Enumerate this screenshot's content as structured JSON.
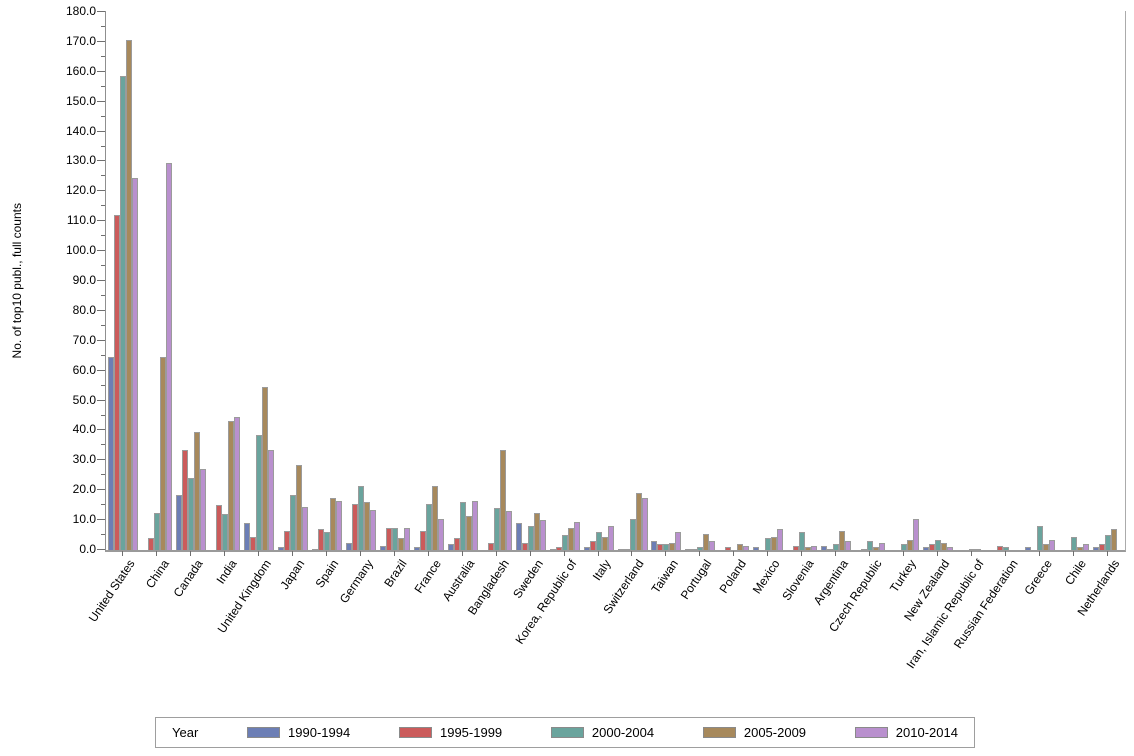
{
  "chart_data": {
    "type": "bar",
    "title": "",
    "xlabel": "",
    "ylabel": "No. of top10 publ., full counts",
    "ylim": [
      0,
      180
    ],
    "ytick_step": 10,
    "ytick_minor_step": 5,
    "ytick_labels": [
      "0.0",
      "10.0",
      "20.0",
      "30.0",
      "40.0",
      "50.0",
      "60.0",
      "70.0",
      "80.0",
      "90.0",
      "100.0",
      "110.0",
      "120.0",
      "130.0",
      "140.0",
      "150.0",
      "160.0",
      "170.0",
      "180.0"
    ],
    "grid": false,
    "legend": {
      "title": "Year",
      "position": "bottom"
    },
    "categories": [
      "United States",
      "China",
      "Canada",
      "India",
      "United Kingdom",
      "Japan",
      "Spain",
      "Germany",
      "Brazil",
      "France",
      "Australia",
      "Bangladesh",
      "Sweden",
      "Korea, Republic of",
      "Italy",
      "Switzerland",
      "Taiwan",
      "Portugal",
      "Poland",
      "Mexico",
      "Slovenia",
      "Argentina",
      "Czech Republic",
      "Turkey",
      "New Zealand",
      "Iran, Islamic Republic of",
      "Russian Federation",
      "Greece",
      "Chile",
      "Netherlands"
    ],
    "series": [
      {
        "name": "1990-1994",
        "color": "#6C7EB5",
        "values": [
          64.5,
          0,
          18.5,
          0,
          9,
          1,
          0.5,
          2.5,
          1.5,
          1,
          2,
          0,
          9,
          0.5,
          1,
          0.5,
          3,
          0.5,
          0,
          1,
          0,
          1.5,
          0,
          0,
          1,
          0,
          0,
          1,
          0,
          1
        ]
      },
      {
        "name": "1995-1999",
        "color": "#CB5B5B",
        "values": [
          112,
          4,
          33.5,
          15,
          4.5,
          6.5,
          7,
          15.5,
          7.5,
          6.5,
          4,
          2.5,
          2.5,
          1,
          3,
          0.5,
          2,
          0.5,
          1,
          0,
          1.5,
          0.5,
          0.5,
          0,
          2,
          0,
          1.5,
          0,
          0,
          2
        ]
      },
      {
        "name": "2000-2004",
        "color": "#6AA49D",
        "values": [
          158.5,
          12.5,
          24,
          12,
          38.5,
          18.5,
          6,
          21.5,
          7.5,
          15.5,
          16,
          14,
          8,
          5,
          6,
          10.5,
          2,
          1,
          0,
          4,
          6,
          2,
          3,
          2,
          3.5,
          0.5,
          1,
          8,
          4.5,
          5
        ]
      },
      {
        "name": "2005-2009",
        "color": "#A7895C",
        "values": [
          170.5,
          64.5,
          39.5,
          43,
          54.5,
          28.5,
          17.5,
          16,
          4,
          21.5,
          11.5,
          33.5,
          12.5,
          7.5,
          4.5,
          19,
          2.5,
          5.5,
          2,
          4.5,
          1,
          6.5,
          1,
          3.5,
          2.5,
          0.5,
          0,
          2,
          1,
          7
        ]
      },
      {
        "name": "2010-2014",
        "color": "#B990CE",
        "values": [
          124.5,
          129.5,
          27,
          44.5,
          33.5,
          14.5,
          16.5,
          13.5,
          7.5,
          10.5,
          16.5,
          13,
          10,
          9.5,
          8,
          17.5,
          6,
          3,
          1.5,
          7,
          1.5,
          3,
          2.5,
          10.5,
          1,
          0,
          0,
          3.5,
          2,
          0
        ]
      }
    ]
  }
}
